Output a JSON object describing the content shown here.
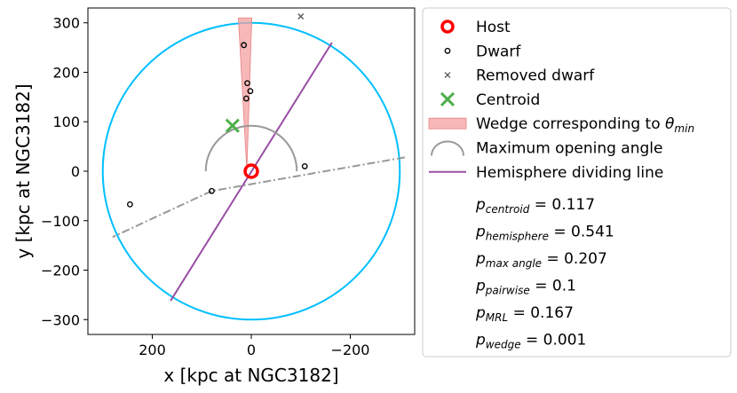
{
  "chart_data": {
    "type": "scatter",
    "xlabel": "x [kpc at NGC3182]",
    "ylabel": "y [kpc at NGC3182]",
    "x_inverted": true,
    "xlim": [
      330,
      -330
    ],
    "ylim": [
      -330,
      330
    ],
    "xticks": [
      200,
      0,
      -200
    ],
    "yticks": [
      300,
      200,
      100,
      0,
      -100,
      -200,
      -300
    ],
    "x_tick_labels": [
      "200",
      "0",
      "−200"
    ],
    "y_tick_labels": [
      "300",
      "200",
      "100",
      "0",
      "−100",
      "−200",
      "−300"
    ],
    "grid": false,
    "legend_position": "outside-right",
    "colors": {
      "host": "#ff0000",
      "dwarf": "#000000",
      "removed": "#555555",
      "centroid": "#4daf4a",
      "wedge": "#f4a0a0",
      "circle": "#00bfff",
      "hemisphere": "#984ea3",
      "opening_angle": "#999999"
    },
    "boundary_radius": 300,
    "host": {
      "x": 0,
      "y": 0
    },
    "dwarfs": [
      {
        "x": 15,
        "y": 255
      },
      {
        "x": 8,
        "y": 178
      },
      {
        "x": 2,
        "y": 162
      },
      {
        "x": 10,
        "y": 147
      },
      {
        "x": -108,
        "y": 10
      },
      {
        "x": 80,
        "y": -40
      },
      {
        "x": 245,
        "y": -67
      }
    ],
    "removed_dwarfs": [
      {
        "x": -100,
        "y": 313
      }
    ],
    "centroid": {
      "x": 38,
      "y": 92
    },
    "wedge": {
      "polygon": [
        [
          26,
          310
        ],
        [
          -1,
          310
        ],
        [
          9,
          0
        ]
      ]
    },
    "hemisphere_line": {
      "x": [
        163,
        -163
      ],
      "y": [
        -262,
        260
      ]
    },
    "opening_angle_lines": [
      {
        "x": [
          -310,
          80,
          280
        ],
        "y": [
          28,
          -40,
          -133
        ]
      }
    ],
    "opening_angle_arc": {
      "radius": 92,
      "start_deg": 180,
      "end_deg": 360
    },
    "legend": [
      {
        "label": "Host",
        "marker": "host"
      },
      {
        "label": "Dwarf",
        "marker": "dwarf"
      },
      {
        "label": "Removed dwarf",
        "marker": "removed"
      },
      {
        "label": "Centroid",
        "marker": "centroid"
      },
      {
        "label": "Wedge corresponding to θ",
        "sub": "min",
        "marker": "wedge"
      },
      {
        "label": "Maximum opening angle",
        "marker": "arc"
      },
      {
        "label": "Hemisphere dividing line",
        "marker": "line"
      }
    ],
    "stats": [
      {
        "symbol": "p",
        "sub": "centroid",
        "value": "= 0.117"
      },
      {
        "symbol": "p",
        "sub": "hemisphere",
        "value": "= 0.541"
      },
      {
        "symbol": "p",
        "sub": "max angle",
        "value": "= 0.207"
      },
      {
        "symbol": "p",
        "sub": "pairwise",
        "value": "= 0.1"
      },
      {
        "symbol": "p",
        "sub": "MRL",
        "value": "= 0.167"
      },
      {
        "symbol": "p",
        "sub": "wedge",
        "value": "= 0.001"
      }
    ]
  }
}
